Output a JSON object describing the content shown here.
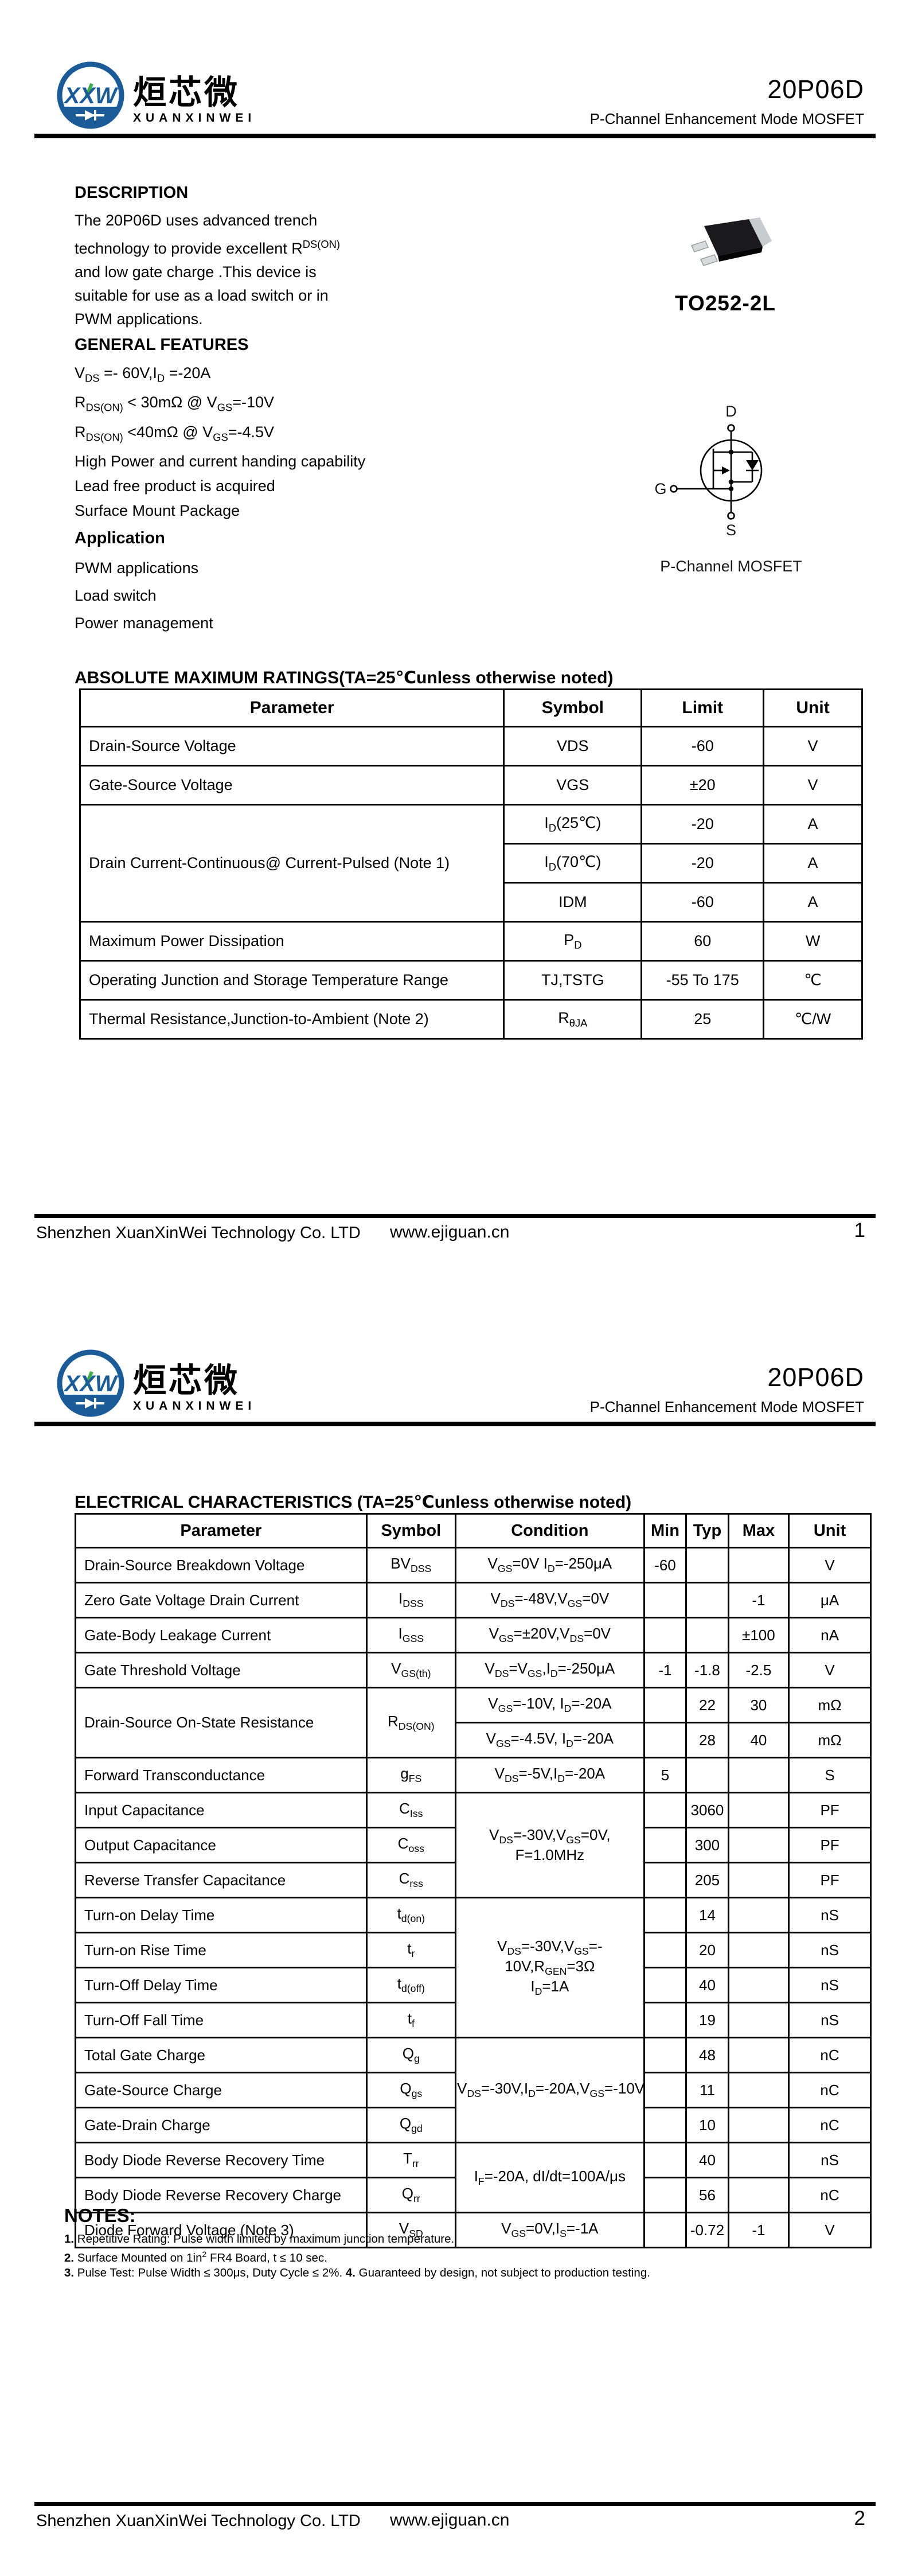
{
  "brand": {
    "logo_monogram": "XXW",
    "name_cn": "烜芯微",
    "name_en": "XUANXINWEI",
    "logo_blue": "#1b5b97",
    "logo_green": "#3fae49"
  },
  "header": {
    "part_number": "20P06D",
    "subtitle": "P-Channel Enhancement Mode MOSFET"
  },
  "page1": {
    "description_title": "DESCRIPTION",
    "description_lines": [
      [
        {
          "t": "The  20P06D uses advanced trench"
        }
      ],
      [
        {
          "t": "technology to provide excellent R"
        },
        {
          "sup": "DS(ON)"
        }
      ],
      [
        {
          "t": "and low gate charge .This device is"
        }
      ],
      [
        {
          "t": "suitable for use as a load switch or in"
        }
      ],
      [
        {
          "t": "PWM applications."
        }
      ]
    ],
    "features_title": "GENERAL FEATURES",
    "feature_lines": [
      [
        {
          "t": "V"
        },
        {
          "sub": "DS"
        },
        {
          "t": " =- 60V,I"
        },
        {
          "sub": "D"
        },
        {
          "t": " =-20A"
        }
      ],
      [
        {
          "t": "R"
        },
        {
          "sub": "DS(ON)"
        },
        {
          "t": " < 30mΩ @ V"
        },
        {
          "sub": "GS"
        },
        {
          "t": "=-10V"
        }
      ],
      [
        {
          "t": "R"
        },
        {
          "sub": "DS(ON)"
        },
        {
          "t": " <40mΩ @ V"
        },
        {
          "sub": "GS"
        },
        {
          "t": "=-4.5V"
        }
      ],
      [
        {
          "t": "High Power and current handing capability"
        }
      ],
      [
        {
          "t": "Lead free product is acquired"
        }
      ],
      [
        {
          "t": "Surface Mount Package"
        }
      ]
    ],
    "application_title": "Application",
    "application_lines": [
      [
        {
          "t": "PWM applications"
        }
      ],
      [
        {
          "t": "Load switch"
        }
      ],
      [
        {
          "t": "Power management"
        }
      ]
    ],
    "package_label": "TO252-2L",
    "symbol_caption": "P-Channel MOSFET",
    "pins": {
      "drain": "D",
      "gate": "G",
      "source": "S"
    },
    "abs_title": "ABSOLUTE MAXIMUM RATINGS(TA=25℃unless otherwise noted)"
  },
  "abs_table": {
    "headers": [
      "Parameter",
      "Symbol",
      "Limit",
      "Unit"
    ],
    "col_widths": [
      "54.2%",
      "17.6%",
      "15.6%",
      "12.6%"
    ],
    "rows": [
      [
        {
          "text": "Drain-Source Voltage",
          "align": "left"
        },
        {
          "text": "VDS"
        },
        {
          "text": "-60"
        },
        {
          "text": "V"
        }
      ],
      [
        {
          "text": "Gate-Source Voltage",
          "align": "left"
        },
        {
          "text": "VGS"
        },
        {
          "text": "±20"
        },
        {
          "text": "V"
        }
      ],
      [
        {
          "text": "Drain Current-Continuous@ Current-Pulsed (Note 1)",
          "align": "left",
          "rowspan": 3
        },
        {
          "rich": [
            {
              "t": "I"
            },
            {
              "sub": "D"
            },
            {
              "t": "(25℃)"
            }
          ]
        },
        {
          "text": "-20"
        },
        {
          "text": "A"
        }
      ],
      [
        {
          "rich": [
            {
              "t": "I"
            },
            {
              "sub": "D"
            },
            {
              "t": "(70℃)"
            }
          ]
        },
        {
          "text": "-20"
        },
        {
          "text": "A"
        }
      ],
      [
        {
          "text": "IDM"
        },
        {
          "text": "-60"
        },
        {
          "text": "A"
        }
      ],
      [
        {
          "text": "Maximum Power Dissipation",
          "align": "left"
        },
        {
          "rich": [
            {
              "t": "P"
            },
            {
              "sub": "D"
            }
          ]
        },
        {
          "text": "60"
        },
        {
          "text": "W"
        }
      ],
      [
        {
          "text": "Operating Junction and Storage Temperature Range",
          "align": "left"
        },
        {
          "text": "TJ,TSTG"
        },
        {
          "text": "-55 To 175"
        },
        {
          "text": "℃"
        }
      ],
      [
        {
          "text": "Thermal Resistance,Junction-to-Ambient (Note 2)",
          "align": "left"
        },
        {
          "rich": [
            {
              "t": "R"
            },
            {
              "sub": "θJA"
            }
          ]
        },
        {
          "text": "25"
        },
        {
          "text": "℃/W"
        }
      ]
    ]
  },
  "page2": {
    "elec_title": "ELECTRICAL CHARACTERISTICS (TA=25℃unless otherwise noted)",
    "notes_title": "NOTES:",
    "note_lines": [
      [
        {
          "b": "1."
        },
        {
          "t": " Repetitive Rating: Pulse width limited by maximum junction temperature."
        }
      ],
      [
        {
          "b": "2."
        },
        {
          "t": " Surface Mounted on 1in"
        },
        {
          "sup": "2"
        },
        {
          "t": " FR4 Board, t ≤ 10 sec."
        }
      ],
      [
        {
          "b": "3."
        },
        {
          "t": " Pulse Test: Pulse Width ≤ 300μs, Duty Cycle ≤ 2%. "
        },
        {
          "b": "4."
        },
        {
          "t": " Guaranteed by design, not subject to production testing."
        }
      ]
    ]
  },
  "elec_table": {
    "headers": [
      "Parameter",
      "Symbol",
      "Condition",
      "Min",
      "Typ",
      "Max",
      "Unit"
    ],
    "col_widths": [
      "36.6%",
      "11.2%",
      "23.7%",
      "5.3%",
      "5.3%",
      "7.6%",
      "10.3%"
    ],
    "rows": [
      [
        {
          "text": "Drain-Source Breakdown Voltage",
          "align": "left"
        },
        {
          "rich": [
            {
              "t": "BV"
            },
            {
              "sub": "DSS"
            }
          ]
        },
        {
          "rich": [
            {
              "t": "V"
            },
            {
              "sub": "GS"
            },
            {
              "t": "=0V I"
            },
            {
              "sub": "D"
            },
            {
              "t": "=-250μA"
            }
          ]
        },
        {
          "text": "-60"
        },
        {
          "text": ""
        },
        {
          "text": ""
        },
        {
          "text": "V"
        }
      ],
      [
        {
          "text": "Zero Gate Voltage Drain Current",
          "align": "left"
        },
        {
          "rich": [
            {
              "t": "I"
            },
            {
              "sub": "DSS"
            }
          ]
        },
        {
          "rich": [
            {
              "t": "V"
            },
            {
              "sub": "DS"
            },
            {
              "t": "=-48V,V"
            },
            {
              "sub": "GS"
            },
            {
              "t": "=0V"
            }
          ]
        },
        {
          "text": ""
        },
        {
          "text": ""
        },
        {
          "text": "-1"
        },
        {
          "text": "μA"
        }
      ],
      [
        {
          "text": "Gate-Body Leakage Current",
          "align": "left"
        },
        {
          "rich": [
            {
              "t": "I"
            },
            {
              "sub": "GSS"
            }
          ]
        },
        {
          "rich": [
            {
              "t": "V"
            },
            {
              "sub": "GS"
            },
            {
              "t": "=±20V,V"
            },
            {
              "sub": "DS"
            },
            {
              "t": "=0V"
            }
          ]
        },
        {
          "text": ""
        },
        {
          "text": ""
        },
        {
          "text": "±100"
        },
        {
          "text": "nA"
        }
      ],
      [
        {
          "text": "Gate Threshold Voltage",
          "align": "left"
        },
        {
          "rich": [
            {
              "t": "V"
            },
            {
              "sub": "GS(th)"
            }
          ]
        },
        {
          "rich": [
            {
              "t": "V"
            },
            {
              "sub": "DS"
            },
            {
              "t": "=V"
            },
            {
              "sub": "GS"
            },
            {
              "t": ",I"
            },
            {
              "sub": "D"
            },
            {
              "t": "=-250μA"
            }
          ]
        },
        {
          "text": "-1"
        },
        {
          "text": "-1.8"
        },
        {
          "text": "-2.5"
        },
        {
          "text": "V"
        }
      ],
      [
        {
          "text": "Drain-Source On-State Resistance",
          "align": "left",
          "rowspan": 2
        },
        {
          "rich": [
            {
              "t": "R"
            },
            {
              "sub": "DS(ON)"
            }
          ],
          "rowspan": 2
        },
        {
          "rich": [
            {
              "t": "V"
            },
            {
              "sub": "GS"
            },
            {
              "t": "=-10V, I"
            },
            {
              "sub": "D"
            },
            {
              "t": "=-20A"
            }
          ]
        },
        {
          "text": ""
        },
        {
          "text": "22"
        },
        {
          "text": "30"
        },
        {
          "text": "mΩ"
        }
      ],
      [
        {
          "rich": [
            {
              "t": "V"
            },
            {
              "sub": "GS"
            },
            {
              "t": "=-4.5V, I"
            },
            {
              "sub": "D"
            },
            {
              "t": "=-20A"
            }
          ]
        },
        {
          "text": ""
        },
        {
          "text": "28"
        },
        {
          "text": "40"
        },
        {
          "text": "mΩ"
        }
      ],
      [
        {
          "text": "Forward Transconductance",
          "align": "left"
        },
        {
          "rich": [
            {
              "t": "g"
            },
            {
              "sub": "FS"
            }
          ]
        },
        {
          "rich": [
            {
              "t": "V"
            },
            {
              "sub": "DS"
            },
            {
              "t": "=-5V,I"
            },
            {
              "sub": "D"
            },
            {
              "t": "=-20A"
            }
          ]
        },
        {
          "text": "5"
        },
        {
          "text": ""
        },
        {
          "text": ""
        },
        {
          "text": "S"
        }
      ],
      [
        {
          "text": "Input Capacitance",
          "align": "left"
        },
        {
          "rich": [
            {
              "t": "C"
            },
            {
              "sub": "Iss"
            }
          ]
        },
        {
          "rich": [
            {
              "t": "V"
            },
            {
              "sub": "DS"
            },
            {
              "t": "=-30V,V"
            },
            {
              "sub": "GS"
            },
            {
              "t": "=0V,"
            },
            {
              "br": true
            },
            {
              "t": "F=1.0MHz"
            }
          ],
          "rowspan": 3
        },
        {
          "text": ""
        },
        {
          "text": "3060"
        },
        {
          "text": ""
        },
        {
          "text": "PF"
        }
      ],
      [
        {
          "text": "Output Capacitance",
          "align": "left"
        },
        {
          "rich": [
            {
              "t": "C"
            },
            {
              "sub": "oss"
            }
          ]
        },
        {
          "text": ""
        },
        {
          "text": "300"
        },
        {
          "text": ""
        },
        {
          "text": "PF"
        }
      ],
      [
        {
          "text": "Reverse Transfer Capacitance",
          "align": "left"
        },
        {
          "rich": [
            {
              "t": "C"
            },
            {
              "sub": "rss"
            }
          ]
        },
        {
          "text": ""
        },
        {
          "text": "205"
        },
        {
          "text": ""
        },
        {
          "text": "PF"
        }
      ],
      [
        {
          "text": "Turn-on Delay Time",
          "align": "left"
        },
        {
          "rich": [
            {
              "t": "t"
            },
            {
              "sub": "d(on)"
            }
          ]
        },
        {
          "rich": [
            {
              "t": "V"
            },
            {
              "sub": "DS"
            },
            {
              "t": "=-30V,V"
            },
            {
              "sub": "GS"
            },
            {
              "t": "=-"
            },
            {
              "br": true
            },
            {
              "t": "10V,R"
            },
            {
              "sub": "GEN"
            },
            {
              "t": "=3Ω"
            },
            {
              "br": true
            },
            {
              "t": "I"
            },
            {
              "sub": "D"
            },
            {
              "t": "=1A"
            }
          ],
          "rowspan": 4
        },
        {
          "text": ""
        },
        {
          "text": "14"
        },
        {
          "text": ""
        },
        {
          "text": "nS"
        }
      ],
      [
        {
          "text": "Turn-on Rise Time",
          "align": "left"
        },
        {
          "rich": [
            {
              "t": "t"
            },
            {
              "sub": "r"
            }
          ]
        },
        {
          "text": ""
        },
        {
          "text": "20"
        },
        {
          "text": ""
        },
        {
          "text": "nS"
        }
      ],
      [
        {
          "text": "Turn-Off Delay Time",
          "align": "left"
        },
        {
          "rich": [
            {
              "t": "t"
            },
            {
              "sub": "d(off)"
            }
          ]
        },
        {
          "text": ""
        },
        {
          "text": "40"
        },
        {
          "text": ""
        },
        {
          "text": "nS"
        }
      ],
      [
        {
          "text": "Turn-Off Fall Time",
          "align": "left"
        },
        {
          "rich": [
            {
              "t": "t"
            },
            {
              "sub": "f"
            }
          ]
        },
        {
          "text": ""
        },
        {
          "text": "19"
        },
        {
          "text": ""
        },
        {
          "text": "nS"
        }
      ],
      [
        {
          "text": "Total Gate Charge",
          "align": "left"
        },
        {
          "rich": [
            {
              "t": "Q"
            },
            {
              "sub": "g"
            }
          ]
        },
        {
          "rich": [
            {
              "t": "V"
            },
            {
              "sub": "DS"
            },
            {
              "t": "=-30V,I"
            },
            {
              "sub": "D"
            },
            {
              "t": "=-20A,V"
            },
            {
              "sub": "GS"
            },
            {
              "t": "=-10V"
            }
          ],
          "rowspan": 3
        },
        {
          "text": ""
        },
        {
          "text": "48"
        },
        {
          "text": ""
        },
        {
          "text": "nC"
        }
      ],
      [
        {
          "text": "Gate-Source Charge",
          "align": "left"
        },
        {
          "rich": [
            {
              "t": "Q"
            },
            {
              "sub": "gs"
            }
          ]
        },
        {
          "text": ""
        },
        {
          "text": "11"
        },
        {
          "text": ""
        },
        {
          "text": "nC"
        }
      ],
      [
        {
          "text": "Gate-Drain Charge",
          "align": "left"
        },
        {
          "rich": [
            {
              "t": "Q"
            },
            {
              "sub": "gd"
            }
          ]
        },
        {
          "text": ""
        },
        {
          "text": "10"
        },
        {
          "text": ""
        },
        {
          "text": "nC"
        }
      ],
      [
        {
          "text": "Body Diode Reverse Recovery Time",
          "align": "left"
        },
        {
          "rich": [
            {
              "t": "T"
            },
            {
              "sub": "rr"
            }
          ]
        },
        {
          "rich": [
            {
              "t": "I"
            },
            {
              "sub": "F"
            },
            {
              "t": "=-20A, dI/dt=100A/μs"
            }
          ],
          "rowspan": 2
        },
        {
          "text": ""
        },
        {
          "text": "40"
        },
        {
          "text": ""
        },
        {
          "text": "nS"
        }
      ],
      [
        {
          "text": "Body Diode Reverse Recovery Charge",
          "align": "left"
        },
        {
          "rich": [
            {
              "t": "Q"
            },
            {
              "sub": "rr"
            }
          ]
        },
        {
          "text": ""
        },
        {
          "text": "56"
        },
        {
          "text": ""
        },
        {
          "text": "nC"
        }
      ],
      [
        {
          "text": "Diode Forward Voltage (Note 3)",
          "align": "left"
        },
        {
          "rich": [
            {
              "t": "V"
            },
            {
              "sub": "SD"
            }
          ]
        },
        {
          "rich": [
            {
              "t": "V"
            },
            {
              "sub": "GS"
            },
            {
              "t": "=0V,I"
            },
            {
              "sub": "S"
            },
            {
              "t": "=-1A"
            }
          ]
        },
        {
          "text": ""
        },
        {
          "text": "-0.72"
        },
        {
          "text": "-1"
        },
        {
          "text": "V"
        }
      ]
    ]
  },
  "footer": {
    "company": "Shenzhen XuanXinWei Technology Co. LTD",
    "website": "www.ejiguan.cn",
    "page1_number": "1",
    "page2_number": "2"
  }
}
